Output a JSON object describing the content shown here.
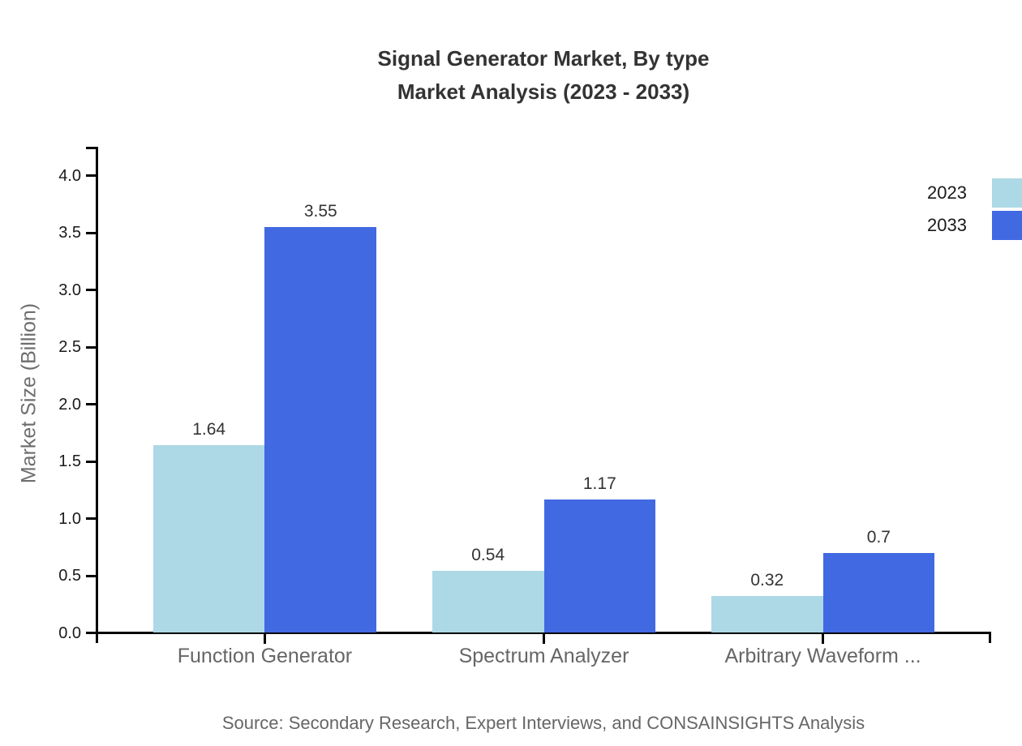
{
  "title": {
    "line1": "Signal Generator Market, By type",
    "line2": "Market Analysis (2023 - 2033)"
  },
  "chart_data": {
    "type": "bar",
    "title": "Signal Generator Market, By type — Market Analysis (2023 - 2033)",
    "categories": [
      "Function Generator",
      "Spectrum Analyzer",
      "Arbitrary Waveform ..."
    ],
    "series": [
      {
        "name": "2023",
        "color": "#add8e6",
        "values": [
          1.64,
          0.54,
          0.32
        ],
        "labels": [
          "1.64",
          "0.54",
          "0.32"
        ]
      },
      {
        "name": "2033",
        "color": "#4169e1",
        "values": [
          3.55,
          1.17,
          0.7
        ],
        "labels": [
          "3.55",
          "1.17",
          "0.7"
        ]
      }
    ],
    "xlabel": "",
    "ylabel": "Market Size (Billion)",
    "ylim": [
      0,
      4.0
    ],
    "ytick_labels": [
      "0.0",
      "0.5",
      "1.0",
      "1.5",
      "2.0",
      "2.5",
      "3.0",
      "3.5",
      "4.0"
    ],
    "grid": false,
    "legend_position": "top-right"
  },
  "footer": {
    "source": "Source: Secondary Research, Expert Interviews, and CONSAINSIGHTS Analysis"
  },
  "colors": {
    "series_2023": "#add8e6",
    "series_2033": "#4169e1",
    "axis": "#000000",
    "title_text": "#333333",
    "tick_text": "#1a1a1a",
    "muted_text": "#666666",
    "data_label_text": "#333333",
    "background": "#ffffff"
  }
}
